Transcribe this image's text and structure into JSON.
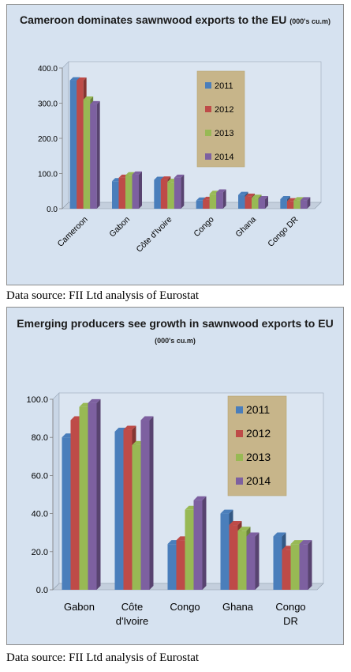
{
  "colors": {
    "2011": "#4a7ebb",
    "2012": "#be4b48",
    "2013": "#98b954",
    "2014": "#7d60a0"
  },
  "chart_data": [
    {
      "type": "bar",
      "title_main": "Cameroon dominates sawnwood exports to the EU",
      "title_unit": "(000's cu.m)",
      "categories": [
        "Cameroon",
        "Gabon",
        "Côte d'Ivoire",
        "Congo",
        "Ghana",
        "Congo DR"
      ],
      "series": [
        {
          "name": "2011",
          "values": [
            365,
            78,
            82,
            23,
            39,
            27
          ]
        },
        {
          "name": "2012",
          "values": [
            364,
            88,
            83,
            25,
            34,
            21
          ]
        },
        {
          "name": "2013",
          "values": [
            310,
            95,
            76,
            42,
            31,
            24
          ]
        },
        {
          "name": "2014",
          "values": [
            297,
            97,
            88,
            46,
            27,
            24
          ]
        }
      ],
      "yticks": [
        "0.0",
        "100.0",
        "200.0",
        "300.0",
        "400.0"
      ],
      "ylim": [
        0,
        400
      ],
      "grid": false,
      "legend": "right",
      "xlabel": "",
      "ylabel": ""
    },
    {
      "type": "bar",
      "title_main": "Emerging producers see growth in sawnwood exports to EU",
      "title_unit": "(000's cu.m)",
      "categories": [
        "Gabon",
        "Côte d'Ivoire",
        "Congo",
        "Ghana",
        "Congo DR"
      ],
      "series": [
        {
          "name": "2011",
          "values": [
            80,
            83,
            24,
            40,
            28
          ]
        },
        {
          "name": "2012",
          "values": [
            89,
            84,
            26,
            34,
            21
          ]
        },
        {
          "name": "2013",
          "values": [
            96,
            76,
            42,
            31,
            24
          ]
        },
        {
          "name": "2014",
          "values": [
            98,
            89,
            47,
            28,
            24
          ]
        }
      ],
      "yticks": [
        "0.0",
        "20.0",
        "40.0",
        "60.0",
        "80.0",
        "100.0"
      ],
      "ylim": [
        0,
        100
      ],
      "grid": false,
      "legend": "right",
      "xlabel": "",
      "ylabel": ""
    }
  ],
  "source_1": "Data source: FII Ltd analysis of Eurostat",
  "source_2": "Data source: FII Ltd analysis of Eurostat"
}
